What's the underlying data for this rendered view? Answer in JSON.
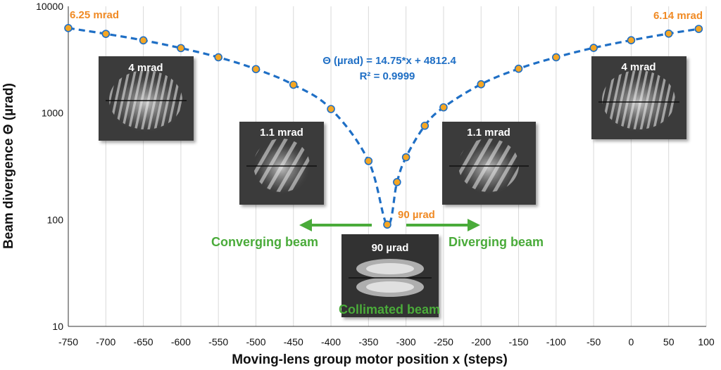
{
  "chart_data": {
    "type": "scatter",
    "xlabel": "Moving-lens group motor position x (steps)",
    "ylabel": "Beam divergence Θ (µrad)",
    "xlim": [
      -750,
      100
    ],
    "ylim": [
      10,
      10000
    ],
    "yscale": "log",
    "x_ticks": [
      "-750",
      "-700",
      "-650",
      "-600",
      "-550",
      "-500",
      "-450",
      "-400",
      "-350",
      "-300",
      "-250",
      "-200",
      "-150",
      "-100",
      "-50",
      "0",
      "50",
      "100"
    ],
    "y_ticks": [
      "10",
      "100",
      "1000",
      "10000"
    ],
    "grid": "vertical",
    "series": [
      {
        "color": "#f5a623",
        "line_color": "#1f6fc5",
        "x": [
          -750,
          -700,
          -650,
          -600,
          -550,
          -500,
          -450,
          -400,
          -350,
          -325,
          -312,
          -300,
          -275,
          -250,
          -200,
          -150,
          -100,
          -50,
          0,
          50,
          90
        ],
        "y": [
          6250,
          5520,
          4800,
          4060,
          3330,
          2580,
          1840,
          1090,
          355,
          90,
          225,
          385,
          760,
          1130,
          1860,
          2600,
          3330,
          4080,
          4810,
          5550,
          6140
        ]
      }
    ],
    "annotations": {
      "left_end": "6.25 mrad",
      "right_end": "6.14 mrad",
      "min": "90 µrad",
      "equation": "Θ (µrad) = 14.75*x + 4812.4",
      "r2": "R² = 0.9999",
      "converging": "Converging beam",
      "diverging": "Diverging beam",
      "collimated": "Collimated beam"
    },
    "insets": [
      {
        "label": "4 mrad"
      },
      {
        "label": "1.1 mrad"
      },
      {
        "label": "90 µrad"
      },
      {
        "label": "1.1 mrad"
      },
      {
        "label": "4 mrad"
      }
    ]
  },
  "colors": {
    "accent_orange": "#f08a24",
    "accent_blue": "#1f6fc5",
    "accent_green": "#4aab3a"
  }
}
